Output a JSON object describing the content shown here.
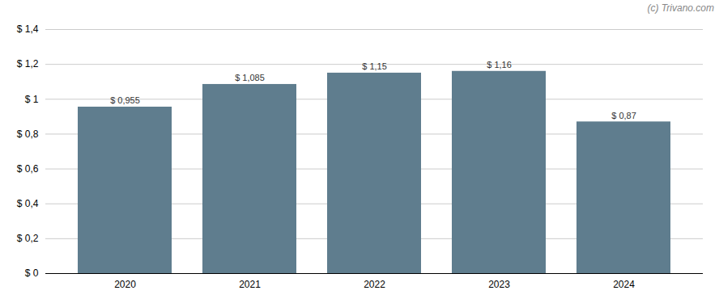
{
  "chart_data": {
    "type": "bar",
    "categories": [
      2020,
      2021,
      2022,
      2023,
      2024
    ],
    "values": [
      0.955,
      1.085,
      1.15,
      1.16,
      0.87
    ],
    "value_labels": [
      "$ 0,955",
      "$ 1,085",
      "$ 1,15",
      "$ 1,16",
      "$ 0,87"
    ],
    "color": "#5f7d8e",
    "ylim": [
      0,
      1.4
    ],
    "yticks": [
      {
        "value": 0,
        "label": "$ 0"
      },
      {
        "value": 0.2,
        "label": "$ 0,2"
      },
      {
        "value": 0.4,
        "label": "$ 0,4"
      },
      {
        "value": 0.6,
        "label": "$ 0,6"
      },
      {
        "value": 0.8,
        "label": "$ 0,8"
      },
      {
        "value": 1.0,
        "label": "$ 1"
      },
      {
        "value": 1.2,
        "label": "$ 1,2"
      },
      {
        "value": 1.4,
        "label": "$ 1,4"
      }
    ],
    "grid": true,
    "data_labels": true,
    "annotations": [
      "(c) Trivano.com"
    ]
  }
}
